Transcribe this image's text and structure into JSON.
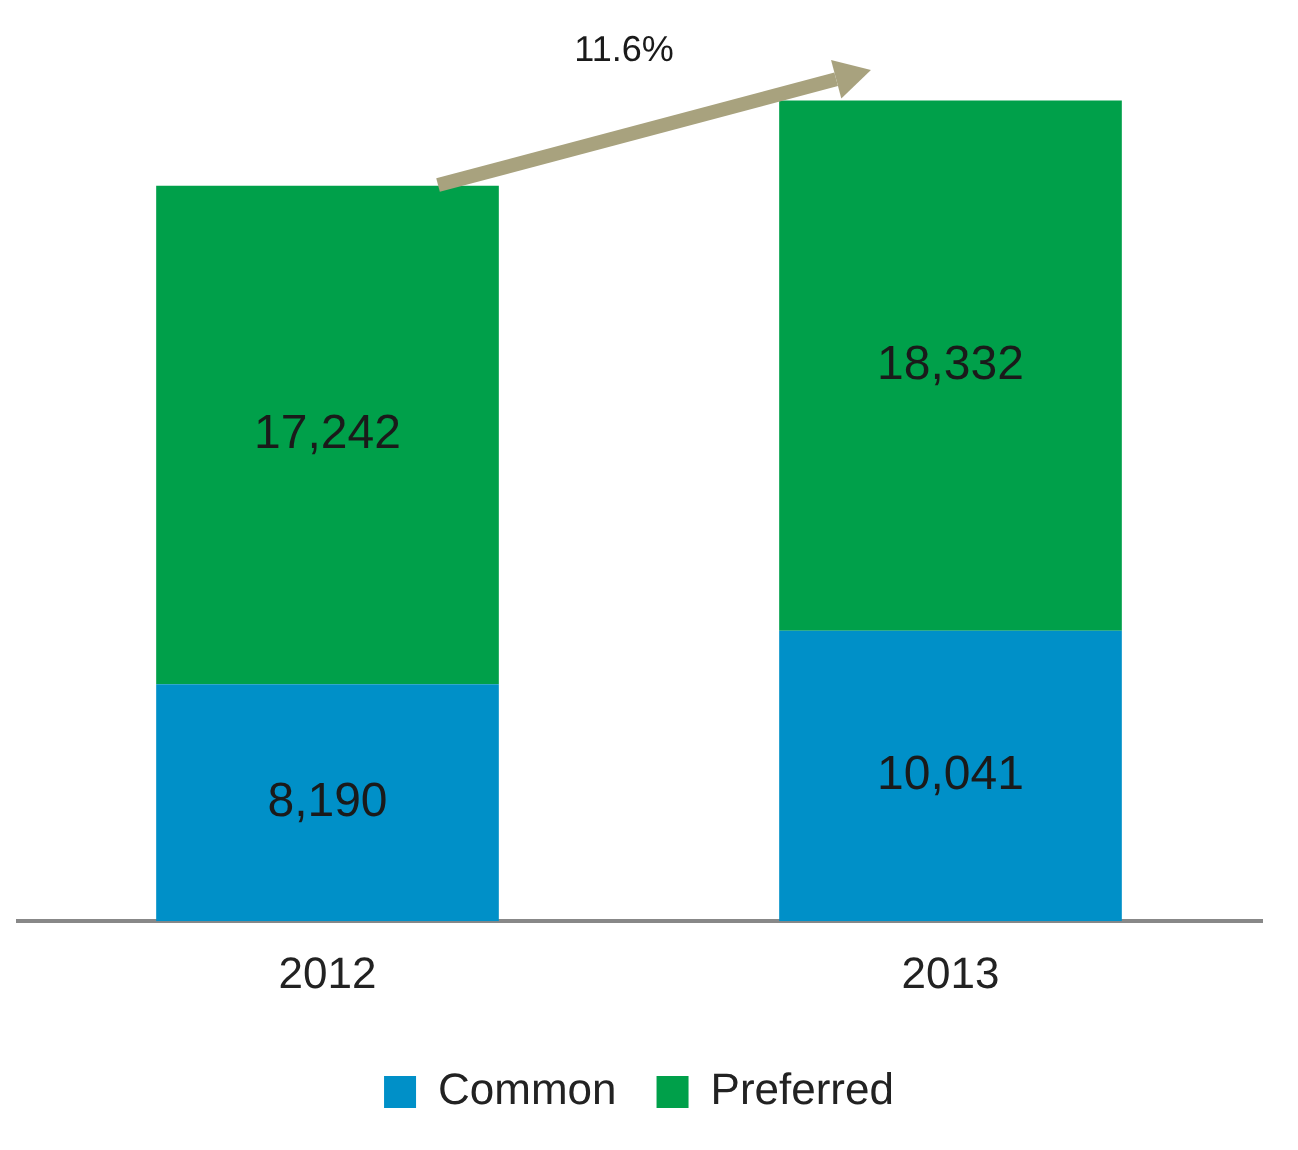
{
  "chart_data": {
    "type": "bar",
    "stacked": true,
    "categories": [
      "2012",
      "2013"
    ],
    "series": [
      {
        "name": "Common",
        "color": "#0090c8",
        "values": [
          8190,
          10041
        ],
        "value_labels": [
          "8,190",
          "10,041"
        ]
      },
      {
        "name": "Preferred",
        "color": "#00a04a",
        "values": [
          17242,
          18332
        ],
        "value_labels": [
          "17,242",
          "18,332"
        ]
      }
    ],
    "legend": "bottom",
    "grid": false,
    "annotations": [
      "11.6%"
    ]
  }
}
